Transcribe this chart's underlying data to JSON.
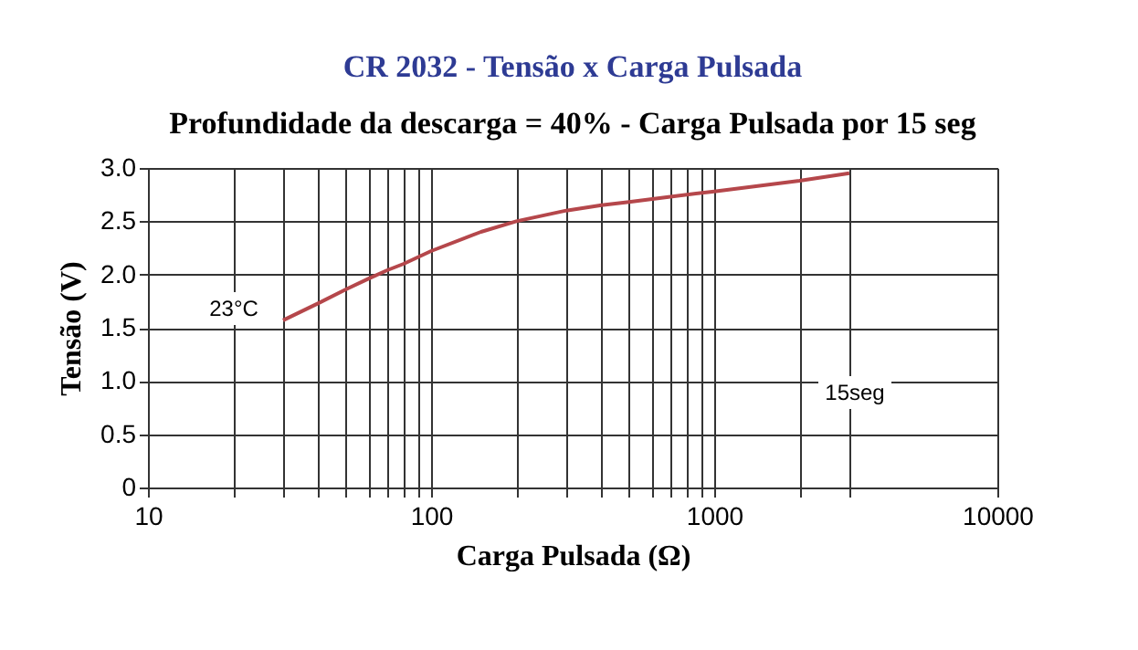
{
  "chart_data": {
    "type": "line",
    "title": "CR 2032 - Tensão x Carga Pulsada",
    "subtitle": "Profundidade da descarga = 40% - Carga Pulsada por 15 seg",
    "xlabel": "Carga Pulsada (Ω)",
    "ylabel": "Tensão (V)",
    "log": "x",
    "grid": true,
    "xlim": [
      10,
      10000
    ],
    "ylim": [
      0,
      3.0
    ],
    "xticks": [
      10,
      {
        "value": 20,
        "label": null
      },
      {
        "value": 30,
        "label": null
      },
      {
        "value": 40,
        "label": null
      },
      {
        "value": 50,
        "label": null
      },
      {
        "value": 60,
        "label": null
      },
      {
        "value": 70,
        "label": null
      },
      {
        "value": 80,
        "label": null
      },
      {
        "value": 90,
        "label": null
      },
      100,
      {
        "value": 200,
        "label": null
      },
      {
        "value": 300,
        "label": null
      },
      {
        "value": 400,
        "label": null
      },
      {
        "value": 500,
        "label": null
      },
      {
        "value": 600,
        "label": null
      },
      {
        "value": 700,
        "label": null
      },
      {
        "value": 800,
        "label": null
      },
      {
        "value": 900,
        "label": null
      },
      1000,
      {
        "value": 2000,
        "label": null
      },
      {
        "value": 3000,
        "label": null
      },
      10000
    ],
    "yticks": [
      {
        "value": 0,
        "label": "0"
      },
      {
        "value": 0.5,
        "label": "0.5"
      },
      {
        "value": 1.0,
        "label": "1.0"
      },
      {
        "value": 1.5,
        "label": "1.5"
      },
      {
        "value": 2.0,
        "label": "2.0"
      },
      {
        "value": 2.5,
        "label": "2.5"
      },
      {
        "value": 3.0,
        "label": "3.0"
      }
    ],
    "x": [
      30,
      40,
      50,
      60,
      70,
      80,
      100,
      150,
      200,
      300,
      400,
      500,
      700,
      1000,
      2000,
      3000
    ],
    "series": [
      {
        "color": "#b5474b",
        "values": [
          1.57,
          1.73,
          1.86,
          1.96,
          2.04,
          2.1,
          2.22,
          2.4,
          2.5,
          2.6,
          2.65,
          2.68,
          2.73,
          2.78,
          2.88,
          2.95
        ]
      }
    ],
    "annotations": [
      "23°C",
      "15seg"
    ]
  }
}
